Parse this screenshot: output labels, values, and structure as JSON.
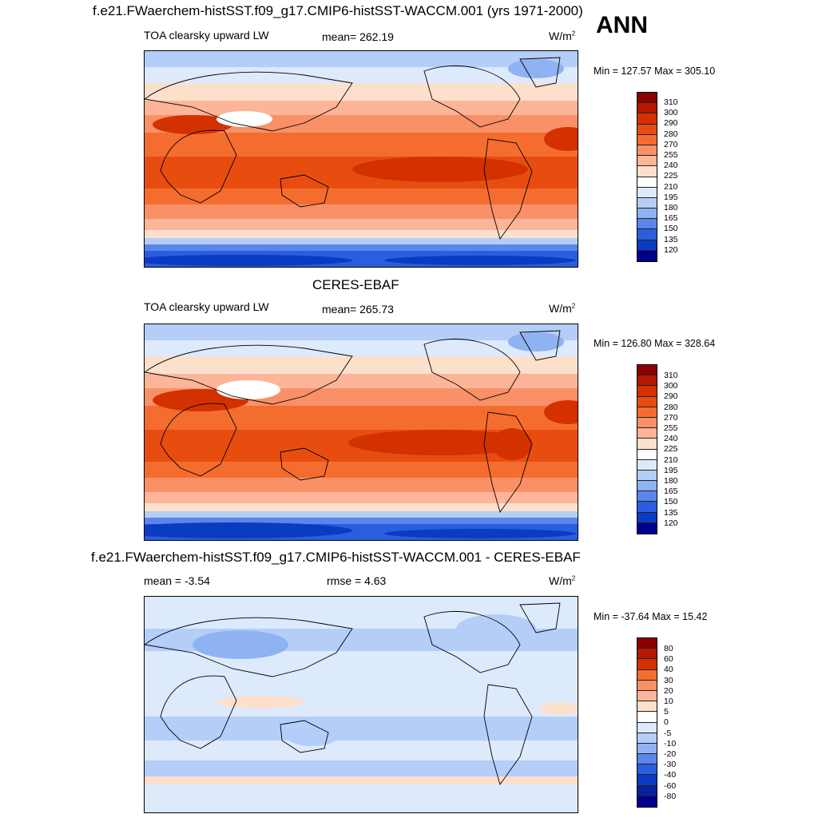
{
  "page": {
    "season": "ANN"
  },
  "panels": [
    {
      "id": "model",
      "title": "f.e21.FWaerchem-histSST.f09_g17.CMIP6-histSST-WACCM.001 (yrs 1971-2000)",
      "variable": "TOA clearsky upward LW",
      "mean_label": "mean= 262.19",
      "units": "W/m",
      "units_sup": "2",
      "minmax": "Min = 127.57 Max = 305.10",
      "colorbar_labels": [
        "310",
        "300",
        "290",
        "280",
        "270",
        "255",
        "240",
        "225",
        "210",
        "195",
        "180",
        "165",
        "150",
        "135",
        "120"
      ]
    },
    {
      "id": "obs",
      "title": "CERES-EBAF",
      "variable": "TOA clearsky upward LW",
      "mean_label": "mean= 265.73",
      "units": "W/m",
      "units_sup": "2",
      "minmax": "Min = 126.80 Max = 328.64",
      "colorbar_labels": [
        "310",
        "300",
        "290",
        "280",
        "270",
        "255",
        "240",
        "225",
        "210",
        "195",
        "180",
        "165",
        "150",
        "135",
        "120"
      ]
    },
    {
      "id": "diff",
      "title": "f.e21.FWaerchem-histSST.f09_g17.CMIP6-histSST-WACCM.001 - CERES-EBAF",
      "mean_label": "mean =  -3.54",
      "rmse_label": "rmse =   4.63",
      "units": "W/m",
      "units_sup": "2",
      "minmax": "Min = -37.64 Max =  15.42",
      "colorbar_labels": [
        "80",
        "60",
        "40",
        "30",
        "20",
        "10",
        "5",
        "0",
        "-5",
        "-10",
        "-20",
        "-30",
        "-40",
        "-60",
        "-80"
      ]
    }
  ],
  "colors": {
    "abs_scale": [
      "#8b0000",
      "#b41800",
      "#d43100",
      "#e84d10",
      "#f46d2f",
      "#f99068",
      "#fcb598",
      "#fde0cc",
      "#ffffff",
      "#dceafc",
      "#b4cef8",
      "#8fb2f2",
      "#5a86ec",
      "#2b5ddf",
      "#0b3bc2",
      "#00008b"
    ],
    "diff_scale": [
      "#8b0000",
      "#b41800",
      "#d43100",
      "#f46d2f",
      "#f99068",
      "#fcb598",
      "#fde0cc",
      "#ffffff",
      "#dceafc",
      "#b4cef8",
      "#8fb2f2",
      "#5a86ec",
      "#2b5ddf",
      "#0b3bc2",
      "#07229a",
      "#00008b"
    ]
  }
}
